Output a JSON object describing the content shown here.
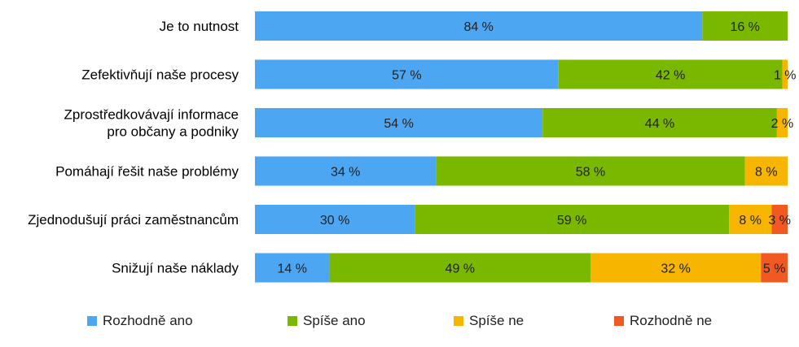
{
  "chart_data": {
    "type": "bar",
    "orientation": "horizontal",
    "stacked": true,
    "percent_stacked": true,
    "categories": [
      "Je to nutnost",
      "Zefektivňují naše procesy",
      "Zprostředkovávají informace pro občany a podniky",
      "Pomáhají řešit naše problémy",
      "Zjednodušují práci zaměstnancům",
      "Snižují naše náklady"
    ],
    "category_lines": [
      [
        "Je to nutnost"
      ],
      [
        "Zefektivňují naše procesy"
      ],
      [
        "Zprostředkovávají informace",
        "pro občany a podniky"
      ],
      [
        "Pomáhají řešit naše problémy"
      ],
      [
        "Zjednodušují práci zaměstnancům"
      ],
      [
        "Snižují naše náklady"
      ]
    ],
    "series": [
      {
        "name": "Rozhodně ano",
        "color": "#4da6f2",
        "values": [
          84,
          57,
          54,
          34,
          30,
          14
        ]
      },
      {
        "name": "Spíše ano",
        "color": "#7ab800",
        "values": [
          16,
          42,
          44,
          58,
          59,
          49
        ]
      },
      {
        "name": "Spíše ne",
        "color": "#f7b500",
        "values": [
          0,
          1,
          2,
          8,
          8,
          32
        ]
      },
      {
        "name": "Rozhodně ne",
        "color": "#f05a22",
        "values": [
          0,
          0,
          0,
          0,
          3,
          5
        ]
      }
    ],
    "value_suffix": " %",
    "xlim": [
      0,
      100
    ],
    "grid": false,
    "legend_position": "bottom",
    "title": "",
    "xlabel": "",
    "ylabel": ""
  }
}
